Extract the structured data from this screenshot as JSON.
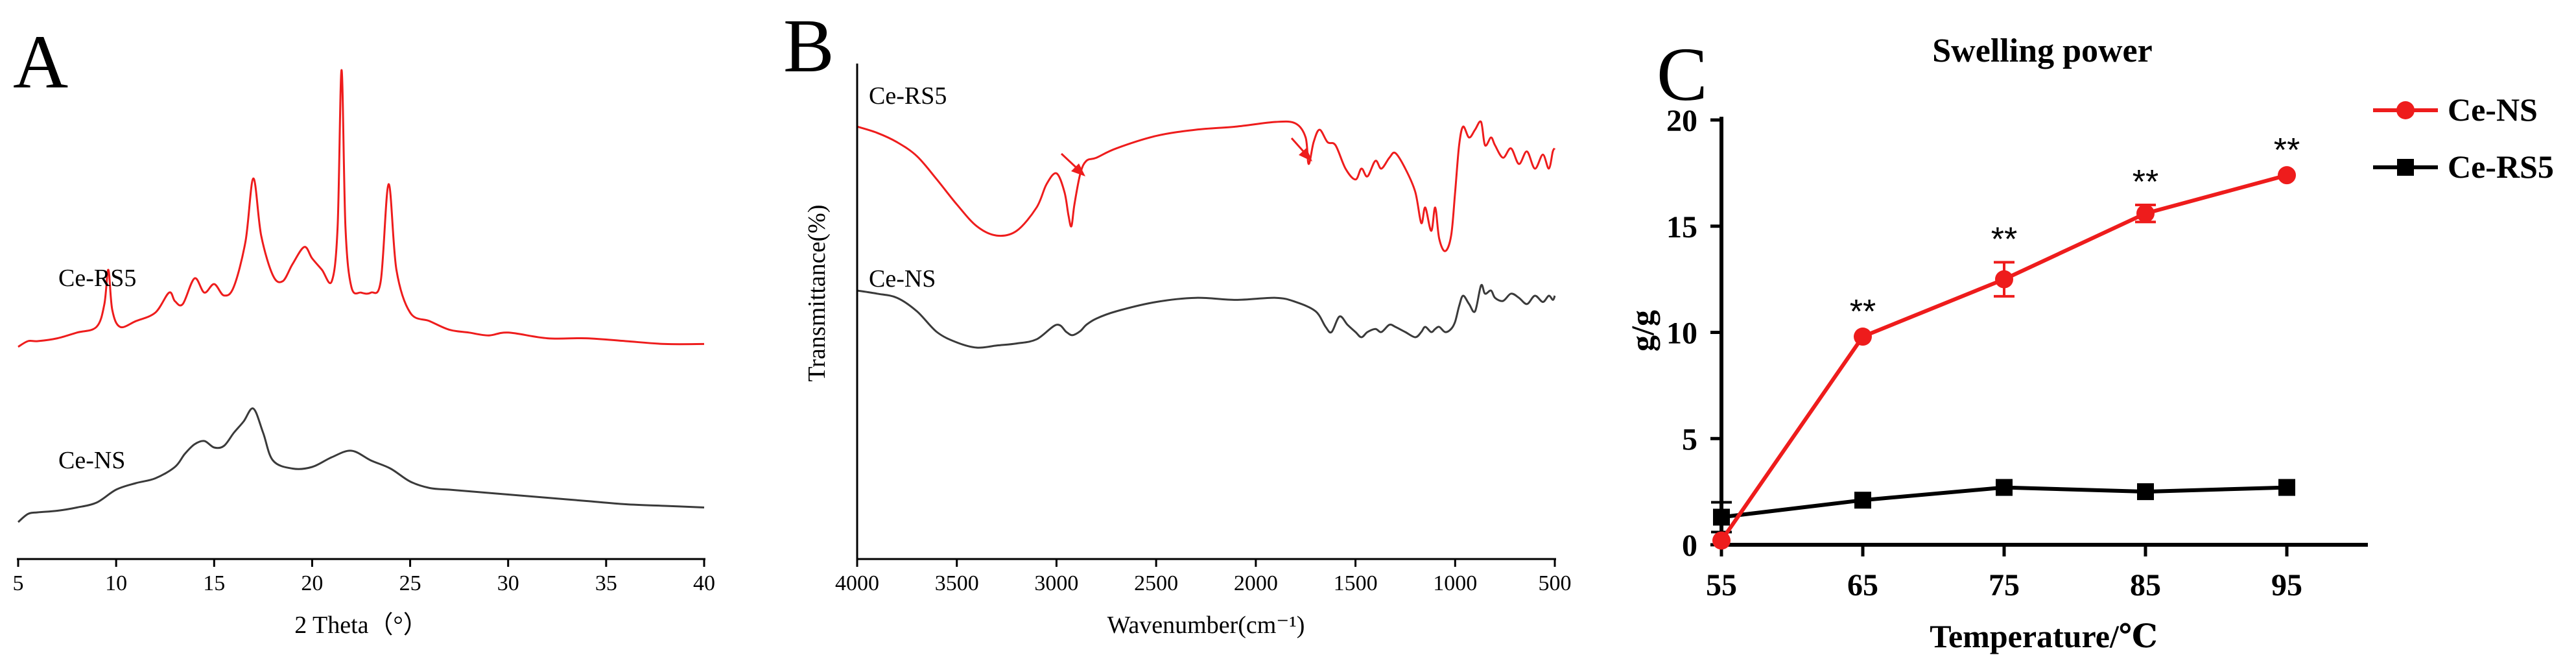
{
  "colors": {
    "red": "#ee1c1c",
    "black": "#3a3a3a",
    "axis": "#000000"
  },
  "chart_data": [
    {
      "type": "line",
      "panel_label": "A",
      "xlabel": "2 Theta（°）",
      "ylabel": "",
      "xlim": [
        5,
        40
      ],
      "xticks": [
        "5",
        "10",
        "15",
        "20",
        "25",
        "30",
        "35",
        "40"
      ],
      "y_axis_shown": false,
      "series": [
        {
          "name": "Ce-RS5",
          "color": "#ee1c1c",
          "x": [
            5,
            5.5,
            6,
            7,
            8,
            9,
            9.4,
            9.6,
            9.8,
            10.2,
            11,
            12,
            12.7,
            13,
            13.4,
            14,
            14.5,
            15,
            15.5,
            16,
            16.6,
            17,
            17.4,
            18,
            18.5,
            19,
            19.6,
            20,
            20.5,
            21,
            21.3,
            21.5,
            21.7,
            22,
            22.5,
            23,
            23.5,
            23.9,
            24.3,
            25,
            26,
            27,
            28,
            29,
            30,
            32,
            34,
            36,
            38,
            40
          ],
          "y": [
            0.03,
            0.05,
            0.05,
            0.06,
            0.08,
            0.1,
            0.18,
            0.3,
            0.16,
            0.1,
            0.12,
            0.15,
            0.22,
            0.19,
            0.18,
            0.27,
            0.22,
            0.25,
            0.21,
            0.24,
            0.4,
            0.62,
            0.42,
            0.28,
            0.26,
            0.32,
            0.38,
            0.34,
            0.3,
            0.26,
            0.45,
            1.0,
            0.45,
            0.24,
            0.22,
            0.22,
            0.26,
            0.6,
            0.3,
            0.15,
            0.12,
            0.09,
            0.08,
            0.07,
            0.08,
            0.06,
            0.06,
            0.05,
            0.04,
            0.04
          ]
        },
        {
          "name": "Ce-NS",
          "color": "#3a3a3a",
          "x": [
            5,
            5.5,
            6,
            7,
            8,
            9,
            10,
            11,
            12,
            13,
            13.5,
            14,
            14.5,
            15,
            15.5,
            16,
            16.5,
            17,
            17.5,
            18,
            19,
            20,
            21,
            22,
            23,
            24,
            25,
            26,
            27,
            28,
            30,
            32,
            34,
            36,
            38,
            40
          ],
          "y": [
            0.0,
            0.05,
            0.06,
            0.07,
            0.09,
            0.12,
            0.2,
            0.24,
            0.27,
            0.34,
            0.42,
            0.48,
            0.5,
            0.46,
            0.47,
            0.55,
            0.62,
            0.7,
            0.55,
            0.38,
            0.33,
            0.34,
            0.4,
            0.44,
            0.38,
            0.33,
            0.25,
            0.21,
            0.2,
            0.19,
            0.17,
            0.15,
            0.13,
            0.11,
            0.1,
            0.09
          ]
        }
      ]
    },
    {
      "type": "line",
      "panel_label": "B",
      "xlabel": "Wavenumber(cm⁻¹)",
      "ylabel": "Transmittance(%)",
      "xlim": [
        4000,
        500
      ],
      "xticks": [
        "4000",
        "3500",
        "3000",
        "2500",
        "2000",
        "1500",
        "1000",
        "500"
      ],
      "annotations": [
        "red arrow near 2930",
        "red arrow near 1735"
      ],
      "series": [
        {
          "name": "Ce-RS5",
          "color": "#ee1c1c",
          "x": [
            4000,
            3900,
            3800,
            3700,
            3600,
            3500,
            3400,
            3300,
            3200,
            3100,
            3050,
            3000,
            2960,
            2940,
            2925,
            2910,
            2880,
            2850,
            2800,
            2700,
            2500,
            2300,
            2100,
            1900,
            1800,
            1750,
            1735,
            1710,
            1680,
            1640,
            1600,
            1550,
            1500,
            1470,
            1440,
            1400,
            1370,
            1330,
            1300,
            1250,
            1200,
            1170,
            1150,
            1120,
            1100,
            1080,
            1050,
            1020,
            1000,
            980,
            960,
            930,
            900,
            870,
            850,
            820,
            800,
            760,
            720,
            680,
            640,
            600,
            560,
            530,
            510,
            500
          ],
          "y": [
            0.82,
            0.78,
            0.72,
            0.63,
            0.48,
            0.32,
            0.18,
            0.12,
            0.15,
            0.3,
            0.45,
            0.52,
            0.4,
            0.25,
            0.18,
            0.32,
            0.52,
            0.6,
            0.62,
            0.68,
            0.76,
            0.8,
            0.82,
            0.85,
            0.84,
            0.75,
            0.58,
            0.72,
            0.8,
            0.72,
            0.7,
            0.55,
            0.48,
            0.55,
            0.5,
            0.6,
            0.55,
            0.62,
            0.65,
            0.55,
            0.4,
            0.2,
            0.3,
            0.15,
            0.3,
            0.1,
            0.02,
            0.12,
            0.4,
            0.7,
            0.82,
            0.75,
            0.8,
            0.85,
            0.7,
            0.75,
            0.7,
            0.62,
            0.68,
            0.58,
            0.66,
            0.55,
            0.64,
            0.55,
            0.66,
            0.68
          ]
        },
        {
          "name": "Ce-NS",
          "color": "#3a3a3a",
          "x": [
            4000,
            3900,
            3800,
            3700,
            3600,
            3500,
            3400,
            3300,
            3200,
            3100,
            3000,
            2950,
            2920,
            2880,
            2850,
            2800,
            2700,
            2500,
            2300,
            2100,
            1900,
            1800,
            1700,
            1650,
            1620,
            1580,
            1540,
            1500,
            1470,
            1440,
            1400,
            1370,
            1330,
            1300,
            1250,
            1200,
            1170,
            1150,
            1120,
            1100,
            1080,
            1050,
            1020,
            1000,
            980,
            960,
            930,
            900,
            870,
            850,
            820,
            800,
            760,
            720,
            680,
            640,
            600,
            560,
            530,
            510,
            500
          ],
          "y": [
            0.95,
            0.92,
            0.88,
            0.75,
            0.55,
            0.45,
            0.4,
            0.42,
            0.44,
            0.48,
            0.62,
            0.55,
            0.52,
            0.56,
            0.62,
            0.68,
            0.75,
            0.84,
            0.88,
            0.86,
            0.88,
            0.84,
            0.75,
            0.6,
            0.55,
            0.7,
            0.62,
            0.55,
            0.5,
            0.55,
            0.58,
            0.55,
            0.62,
            0.6,
            0.55,
            0.5,
            0.55,
            0.6,
            0.55,
            0.58,
            0.6,
            0.55,
            0.58,
            0.65,
            0.8,
            0.9,
            0.82,
            0.75,
            1.0,
            0.92,
            0.95,
            0.88,
            0.85,
            0.92,
            0.88,
            0.82,
            0.9,
            0.84,
            0.9,
            0.86,
            0.9
          ]
        }
      ]
    },
    {
      "type": "line",
      "panel_label": "C",
      "title": "Swelling power",
      "xlabel": "Temperature/℃",
      "ylabel": "g/g",
      "categories": [
        "55",
        "65",
        "75",
        "85",
        "95"
      ],
      "x": [
        55,
        65,
        75,
        85,
        95
      ],
      "xlim": [
        55,
        100
      ],
      "ylim": [
        0,
        20
      ],
      "yticks": [
        "0",
        "5",
        "10",
        "15",
        "20"
      ],
      "legend_position": "top-right",
      "series": [
        {
          "name": "Ce-NS",
          "color": "#ee1c1c",
          "marker": "circle",
          "values": [
            0.2,
            9.8,
            12.5,
            15.6,
            17.4
          ],
          "errors": [
            0.1,
            0.1,
            0.8,
            0.4,
            0.1
          ],
          "significance": [
            "",
            "**",
            "**",
            "**",
            "**"
          ]
        },
        {
          "name": "Ce-RS5",
          "color": "#000000",
          "marker": "square",
          "values": [
            1.3,
            2.1,
            2.7,
            2.5,
            2.7
          ],
          "errors": [
            0.7,
            0.1,
            0.1,
            0.1,
            0.1
          ]
        }
      ]
    }
  ]
}
